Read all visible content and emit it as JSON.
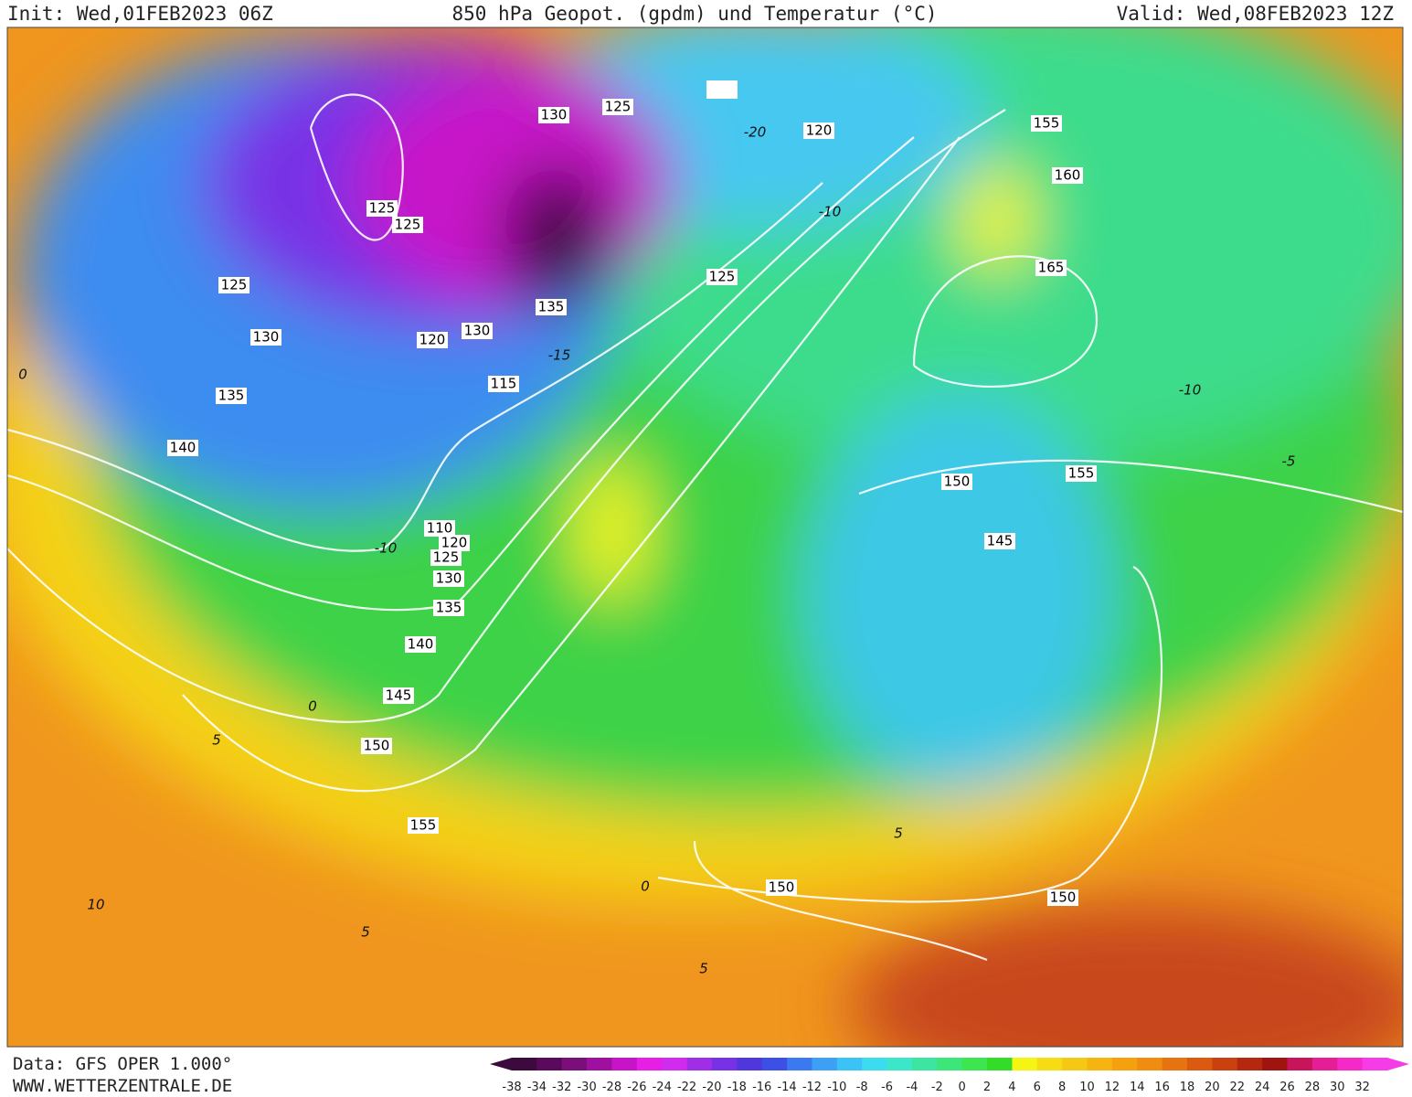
{
  "header": {
    "init": "Init: Wed,01FEB2023 06Z",
    "title": "850 hPa Geopot. (gpdm) und Temperatur (°C)",
    "valid": "Valid: Wed,08FEB2023 12Z"
  },
  "footer": {
    "source": "Data: GFS OPER 1.000°",
    "site": "WWW.WETTERZENTRALE.DE"
  },
  "map": {
    "geopotential_labels": [
      125,
      130,
      120,
      155,
      160,
      125,
      125,
      165,
      125,
      125,
      135,
      130,
      120,
      130,
      115,
      135,
      140,
      150,
      155,
      110,
      120,
      125,
      130,
      145,
      135,
      140,
      145,
      150,
      155,
      150,
      150
    ],
    "temperature_labels": [
      -15,
      -10,
      -10,
      -10,
      -5,
      0,
      5,
      0,
      5,
      10,
      5,
      5,
      -20,
      0
    ]
  },
  "colorbar": {
    "labels": [
      -38,
      -34,
      -32,
      -30,
      -28,
      -26,
      -24,
      -22,
      -20,
      -18,
      -16,
      -14,
      -12,
      -10,
      -8,
      -6,
      -4,
      -2,
      0,
      2,
      4,
      6,
      8,
      10,
      12,
      14,
      16,
      18,
      20,
      22,
      24,
      26,
      28,
      30,
      32
    ],
    "colors": [
      "#3d0a3d",
      "#5a0a5a",
      "#7a0f7a",
      "#a010a0",
      "#c814c8",
      "#e61ee6",
      "#d22bf0",
      "#a02ee6",
      "#7832e6",
      "#5037dc",
      "#3c50e6",
      "#3c78f0",
      "#3ca0f5",
      "#3cc3f5",
      "#3cdcf0",
      "#3ce6c8",
      "#3ce6a0",
      "#3ce678",
      "#3ce650",
      "#32dc28",
      "#f5f514",
      "#f5dc14",
      "#f5c814",
      "#f5b40f",
      "#f5a00f",
      "#f08c0f",
      "#e6730f",
      "#dc5a0f",
      "#c8410f",
      "#b4280f",
      "#a0140f",
      "#c8145a",
      "#e61e96",
      "#f528c8",
      "#f53ce6"
    ]
  }
}
